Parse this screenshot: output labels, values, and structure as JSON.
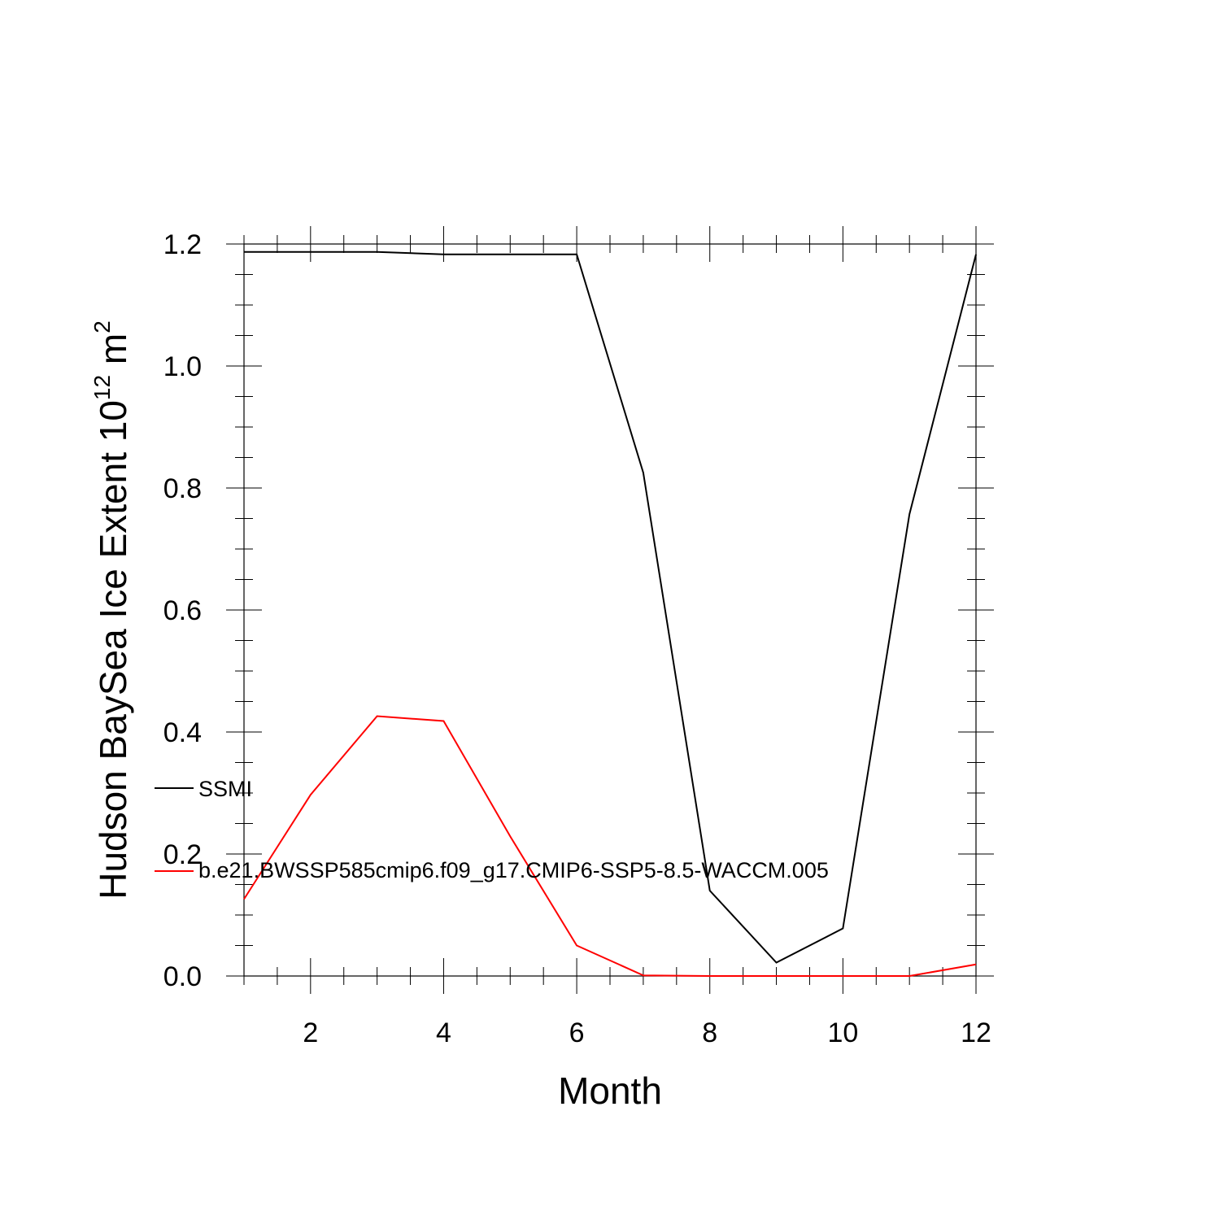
{
  "chart_data": {
    "type": "line",
    "xlabel": "Month",
    "ylabel": {
      "text": "Hudson BaySea Ice Extent 10",
      "superscript": "12",
      "unit": " m",
      "unit_superscript": "2"
    },
    "xlim": [
      1,
      12
    ],
    "ylim": [
      0,
      1.2
    ],
    "xticks": [
      2,
      4,
      6,
      8,
      10,
      12
    ],
    "yticks": [
      0.0,
      0.2,
      0.4,
      0.6,
      0.8,
      1.0,
      1.2
    ],
    "ytick_labels": [
      "0.0",
      "0.2",
      "0.4",
      "0.6",
      "0.8",
      "1.0",
      "1.2"
    ],
    "grid": false,
    "legend": "left-inside",
    "x": [
      1,
      2,
      3,
      4,
      5,
      6,
      7,
      8,
      9,
      10,
      11,
      12
    ],
    "series": [
      {
        "name": "SSMI",
        "color": "#000000",
        "values": [
          1.187,
          1.187,
          1.187,
          1.183,
          1.183,
          1.183,
          0.825,
          0.14,
          0.022,
          0.078,
          0.757,
          1.183
        ]
      },
      {
        "name": "b.e21.BWSSP585cmip6.f09_g17.CMIP6-SSP5-8.5-WACCM.005",
        "color": "#ff0000",
        "values": [
          0.126,
          0.297,
          0.426,
          0.418,
          0.229,
          0.05,
          0.001,
          0.0,
          0.0,
          0.0,
          0.0,
          0.019
        ]
      }
    ]
  }
}
